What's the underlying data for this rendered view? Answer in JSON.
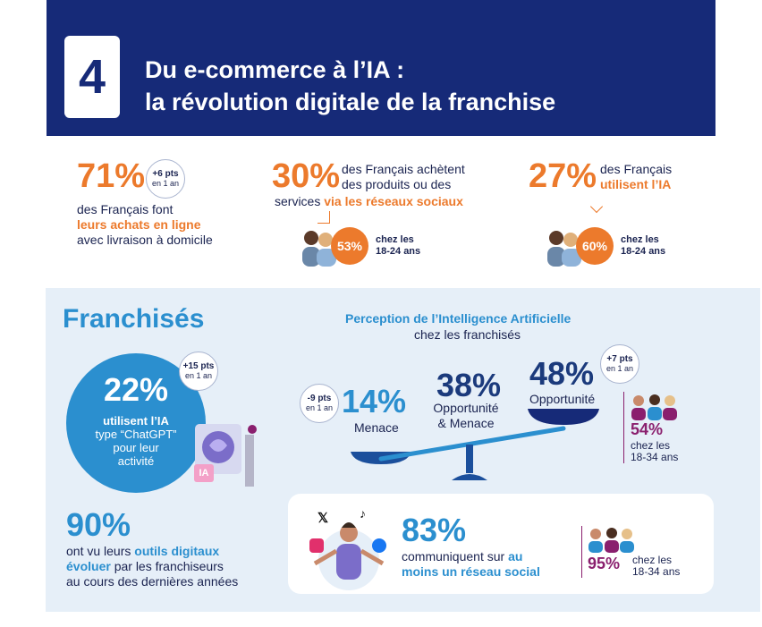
{
  "header": {
    "number": "4",
    "title_line1": "Du e-commerce à l’IA :",
    "title_line2": "la révolution digitale de la franchise"
  },
  "stat1": {
    "value": "71%",
    "badge_pts": "+6 pts",
    "badge_period": "en 1 an",
    "line1": "des Français font",
    "line2_highlight": "leurs achats en ligne",
    "line3": "avec livraison à domicile"
  },
  "stat2": {
    "value": "30%",
    "line1": "des Français achètent",
    "line2": "des produits ou des",
    "line3_prefix": "services ",
    "line3_highlight": "via les réseaux sociaux",
    "sub_value": "53%",
    "sub_label1": "chez les",
    "sub_label2": "18-24 ans"
  },
  "stat3": {
    "value": "27%",
    "line1": "des Français",
    "line2_highlight": "utilisent l’IA",
    "sub_value": "60%",
    "sub_label1": "chez les",
    "sub_label2": "18-24 ans"
  },
  "franchises": {
    "heading": "Franchisés",
    "circle_value": "22%",
    "circle_line1": "utilisent l’IA",
    "circle_line2": "type “ChatGPT”",
    "circle_line3": "pour leur",
    "circle_line4": "activité",
    "circle_badge_pts": "+15 pts",
    "circle_badge_period": "en 1 an",
    "ia_tag": "IA"
  },
  "perception": {
    "title": "Perception de l’Intelligence Artificielle",
    "subtitle": "chez les franchisés",
    "menace_value": "14%",
    "menace_label": "Menace",
    "menace_badge_pts": "-9 pts",
    "menace_badge_period": "en 1 an",
    "both_value": "38%",
    "both_label1": "Opportunité",
    "both_label2": "& Menace",
    "opp_value": "48%",
    "opp_label": "Opportunité",
    "opp_badge_pts": "+7 pts",
    "opp_badge_period": "en 1 an",
    "young_value": "54%",
    "young_label1": "chez les",
    "young_label2": "18-34 ans"
  },
  "digital": {
    "value": "90%",
    "line1_prefix": "ont vu leurs ",
    "line1_highlight": "outils digitaux",
    "line2_highlight": "évoluer",
    "line2_suffix": " par les franchiseurs",
    "line3": "au cours des dernières années"
  },
  "social": {
    "value": "83%",
    "line1_prefix": "communiquent sur ",
    "line1_highlight": "au",
    "line2_highlight": "moins un réseau social",
    "young_value": "95%",
    "young_label1": "chez les",
    "young_label2": "18-34 ans",
    "x_glyph": "𝕏"
  },
  "colors": {
    "navy": "#162a78",
    "orange": "#ec7a2c",
    "blue": "#2b8fcf",
    "purple": "#8a1f6e",
    "section_bg": "#e6eff8"
  }
}
